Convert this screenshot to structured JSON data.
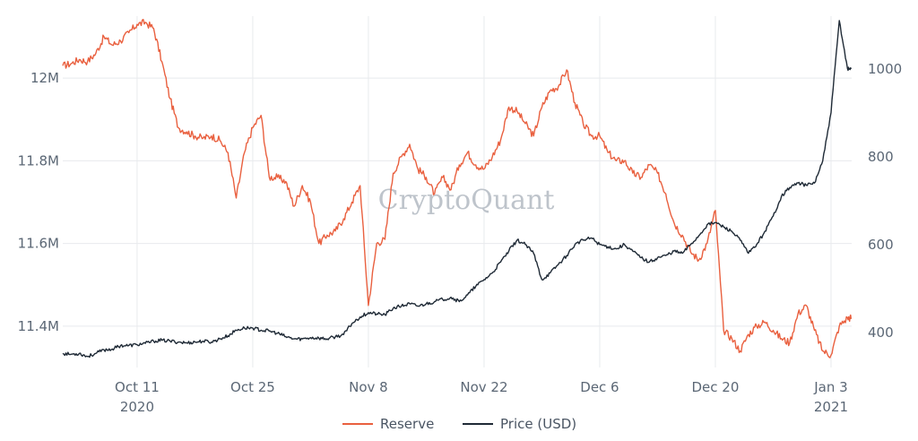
{
  "chart_data": {
    "type": "line",
    "watermark": "CryptoQuant",
    "x_tick_labels": [
      {
        "date": "2020-10-11",
        "label": "Oct 11",
        "sublabel": "2020"
      },
      {
        "date": "2020-10-25",
        "label": "Oct 25",
        "sublabel": ""
      },
      {
        "date": "2020-11-08",
        "label": "Nov 8",
        "sublabel": ""
      },
      {
        "date": "2020-11-22",
        "label": "Nov 22",
        "sublabel": ""
      },
      {
        "date": "2020-12-06",
        "label": "Dec 6",
        "sublabel": ""
      },
      {
        "date": "2020-12-20",
        "label": "Dec 20",
        "sublabel": ""
      },
      {
        "date": "2021-01-03",
        "label": "Jan 3",
        "sublabel": "2021"
      }
    ],
    "x_range": [
      "2020-10-02",
      "2021-01-05"
    ],
    "y_left": {
      "ticks": [
        11400000,
        11600000,
        11800000,
        12000000
      ],
      "tick_labels": [
        "11.4M",
        "11.6M",
        "11.8M",
        "12M"
      ],
      "range": [
        11300000,
        12150000
      ]
    },
    "y_right": {
      "ticks": [
        400,
        600,
        800,
        1000
      ],
      "tick_labels": [
        "400",
        "600",
        "800",
        "1000"
      ],
      "range": [
        320,
        1120
      ]
    },
    "grid": true,
    "legend_position": "bottom-center",
    "series": [
      {
        "name": "Reserve",
        "axis": "left",
        "color": "#e9603f",
        "points": [
          [
            "2020-10-02",
            12030000
          ],
          [
            "2020-10-03",
            12035000
          ],
          [
            "2020-10-04",
            12045000
          ],
          [
            "2020-10-05",
            12040000
          ],
          [
            "2020-10-06",
            12060000
          ],
          [
            "2020-10-07",
            12100000
          ],
          [
            "2020-10-08",
            12080000
          ],
          [
            "2020-10-09",
            12090000
          ],
          [
            "2020-10-10",
            12110000
          ],
          [
            "2020-10-11",
            12130000
          ],
          [
            "2020-10-12",
            12135000
          ],
          [
            "2020-10-13",
            12120000
          ],
          [
            "2020-10-14",
            12040000
          ],
          [
            "2020-10-15",
            11950000
          ],
          [
            "2020-10-16",
            11880000
          ],
          [
            "2020-10-17",
            11870000
          ],
          [
            "2020-10-18",
            11860000
          ],
          [
            "2020-10-19",
            11855000
          ],
          [
            "2020-10-20",
            11860000
          ],
          [
            "2020-10-21",
            11850000
          ],
          [
            "2020-10-22",
            11820000
          ],
          [
            "2020-10-23",
            11710000
          ],
          [
            "2020-10-24",
            11820000
          ],
          [
            "2020-10-25",
            11880000
          ],
          [
            "2020-10-26",
            11910000
          ],
          [
            "2020-10-27",
            11760000
          ],
          [
            "2020-10-28",
            11760000
          ],
          [
            "2020-10-29",
            11750000
          ],
          [
            "2020-10-30",
            11690000
          ],
          [
            "2020-10-31",
            11740000
          ],
          [
            "2020-11-01",
            11700000
          ],
          [
            "2020-11-02",
            11600000
          ],
          [
            "2020-11-03",
            11620000
          ],
          [
            "2020-11-04",
            11630000
          ],
          [
            "2020-11-05",
            11660000
          ],
          [
            "2020-11-06",
            11700000
          ],
          [
            "2020-11-07",
            11740000
          ],
          [
            "2020-11-08",
            11450000
          ],
          [
            "2020-11-09",
            11600000
          ],
          [
            "2020-11-10",
            11610000
          ],
          [
            "2020-11-11",
            11770000
          ],
          [
            "2020-11-12",
            11810000
          ],
          [
            "2020-11-13",
            11840000
          ],
          [
            "2020-11-14",
            11780000
          ],
          [
            "2020-11-15",
            11760000
          ],
          [
            "2020-11-16",
            11720000
          ],
          [
            "2020-11-17",
            11760000
          ],
          [
            "2020-11-18",
            11730000
          ],
          [
            "2020-11-19",
            11790000
          ],
          [
            "2020-11-20",
            11820000
          ],
          [
            "2020-11-21",
            11790000
          ],
          [
            "2020-11-22",
            11780000
          ],
          [
            "2020-11-23",
            11810000
          ],
          [
            "2020-11-24",
            11850000
          ],
          [
            "2020-11-25",
            11930000
          ],
          [
            "2020-11-26",
            11920000
          ],
          [
            "2020-11-27",
            11890000
          ],
          [
            "2020-11-28",
            11860000
          ],
          [
            "2020-11-29",
            11930000
          ],
          [
            "2020-11-30",
            11970000
          ],
          [
            "2020-12-01",
            11980000
          ],
          [
            "2020-12-02",
            12020000
          ],
          [
            "2020-12-03",
            11940000
          ],
          [
            "2020-12-04",
            11890000
          ],
          [
            "2020-12-05",
            11860000
          ],
          [
            "2020-12-06",
            11860000
          ],
          [
            "2020-12-07",
            11820000
          ],
          [
            "2020-12-08",
            11800000
          ],
          [
            "2020-12-09",
            11800000
          ],
          [
            "2020-12-10",
            11770000
          ],
          [
            "2020-12-11",
            11760000
          ],
          [
            "2020-12-12",
            11790000
          ],
          [
            "2020-12-13",
            11770000
          ],
          [
            "2020-12-14",
            11720000
          ],
          [
            "2020-12-15",
            11650000
          ],
          [
            "2020-12-16",
            11620000
          ],
          [
            "2020-12-17",
            11580000
          ],
          [
            "2020-12-18",
            11560000
          ],
          [
            "2020-12-19",
            11600000
          ],
          [
            "2020-12-20",
            11680000
          ],
          [
            "2020-12-21",
            11390000
          ],
          [
            "2020-12-22",
            11370000
          ],
          [
            "2020-12-23",
            11340000
          ],
          [
            "2020-12-24",
            11380000
          ],
          [
            "2020-12-25",
            11400000
          ],
          [
            "2020-12-26",
            11410000
          ],
          [
            "2020-12-27",
            11390000
          ],
          [
            "2020-12-28",
            11370000
          ],
          [
            "2020-12-29",
            11360000
          ],
          [
            "2020-12-30",
            11430000
          ],
          [
            "2020-12-31",
            11450000
          ],
          [
            "2021-01-01",
            11390000
          ],
          [
            "2021-01-02",
            11340000
          ],
          [
            "2021-01-03",
            11330000
          ],
          [
            "2021-01-04",
            11400000
          ],
          [
            "2021-01-05",
            11420000
          ]
        ]
      },
      {
        "name": "Price (USD)",
        "axis": "right",
        "color": "#1f2a36",
        "points": [
          [
            "2020-10-02",
            352
          ],
          [
            "2020-10-03",
            350
          ],
          [
            "2020-10-04",
            352
          ],
          [
            "2020-10-05",
            345
          ],
          [
            "2020-10-06",
            352
          ],
          [
            "2020-10-07",
            360
          ],
          [
            "2020-10-08",
            362
          ],
          [
            "2020-10-09",
            370
          ],
          [
            "2020-10-10",
            370
          ],
          [
            "2020-10-11",
            372
          ],
          [
            "2020-10-12",
            375
          ],
          [
            "2020-10-13",
            380
          ],
          [
            "2020-10-14",
            382
          ],
          [
            "2020-10-15",
            380
          ],
          [
            "2020-10-16",
            378
          ],
          [
            "2020-10-17",
            376
          ],
          [
            "2020-10-18",
            378
          ],
          [
            "2020-10-19",
            380
          ],
          [
            "2020-10-20",
            378
          ],
          [
            "2020-10-21",
            385
          ],
          [
            "2020-10-22",
            392
          ],
          [
            "2020-10-23",
            405
          ],
          [
            "2020-10-24",
            410
          ],
          [
            "2020-10-25",
            410
          ],
          [
            "2020-10-26",
            405
          ],
          [
            "2020-10-27",
            403
          ],
          [
            "2020-10-28",
            398
          ],
          [
            "2020-10-29",
            390
          ],
          [
            "2020-10-30",
            385
          ],
          [
            "2020-10-31",
            385
          ],
          [
            "2020-11-01",
            388
          ],
          [
            "2020-11-02",
            387
          ],
          [
            "2020-11-03",
            385
          ],
          [
            "2020-11-04",
            390
          ],
          [
            "2020-11-05",
            395
          ],
          [
            "2020-11-06",
            420
          ],
          [
            "2020-11-07",
            435
          ],
          [
            "2020-11-08",
            445
          ],
          [
            "2020-11-09",
            442
          ],
          [
            "2020-11-10",
            440
          ],
          [
            "2020-11-11",
            455
          ],
          [
            "2020-11-12",
            460
          ],
          [
            "2020-11-13",
            465
          ],
          [
            "2020-11-14",
            460
          ],
          [
            "2020-11-15",
            465
          ],
          [
            "2020-11-16",
            470
          ],
          [
            "2020-11-17",
            475
          ],
          [
            "2020-11-18",
            480
          ],
          [
            "2020-11-19",
            470
          ],
          [
            "2020-11-20",
            485
          ],
          [
            "2020-11-21",
            505
          ],
          [
            "2020-11-22",
            520
          ],
          [
            "2020-11-23",
            535
          ],
          [
            "2020-11-24",
            560
          ],
          [
            "2020-11-25",
            585
          ],
          [
            "2020-11-26",
            610
          ],
          [
            "2020-11-27",
            600
          ],
          [
            "2020-11-28",
            580
          ],
          [
            "2020-11-29",
            520
          ],
          [
            "2020-11-30",
            535
          ],
          [
            "2020-12-01",
            555
          ],
          [
            "2020-12-02",
            575
          ],
          [
            "2020-12-03",
            600
          ],
          [
            "2020-12-04",
            610
          ],
          [
            "2020-12-05",
            615
          ],
          [
            "2020-12-06",
            600
          ],
          [
            "2020-12-07",
            595
          ],
          [
            "2020-12-08",
            590
          ],
          [
            "2020-12-09",
            600
          ],
          [
            "2020-12-10",
            585
          ],
          [
            "2020-12-11",
            570
          ],
          [
            "2020-12-12",
            560
          ],
          [
            "2020-12-13",
            570
          ],
          [
            "2020-12-14",
            575
          ],
          [
            "2020-12-15",
            585
          ],
          [
            "2020-12-16",
            580
          ],
          [
            "2020-12-17",
            600
          ],
          [
            "2020-12-18",
            620
          ],
          [
            "2020-12-19",
            645
          ],
          [
            "2020-12-20",
            650
          ],
          [
            "2020-12-21",
            640
          ],
          [
            "2020-12-22",
            630
          ],
          [
            "2020-12-23",
            610
          ],
          [
            "2020-12-24",
            580
          ],
          [
            "2020-12-25",
            600
          ],
          [
            "2020-12-26",
            630
          ],
          [
            "2020-12-27",
            665
          ],
          [
            "2020-12-28",
            710
          ],
          [
            "2020-12-29",
            730
          ],
          [
            "2020-12-30",
            740
          ],
          [
            "2020-12-31",
            735
          ],
          [
            "2021-01-01",
            740
          ],
          [
            "2021-01-02",
            790
          ],
          [
            "2021-01-03",
            900
          ],
          [
            "2021-01-04",
            1110
          ],
          [
            "2021-01-05",
            1000
          ]
        ]
      }
    ]
  }
}
